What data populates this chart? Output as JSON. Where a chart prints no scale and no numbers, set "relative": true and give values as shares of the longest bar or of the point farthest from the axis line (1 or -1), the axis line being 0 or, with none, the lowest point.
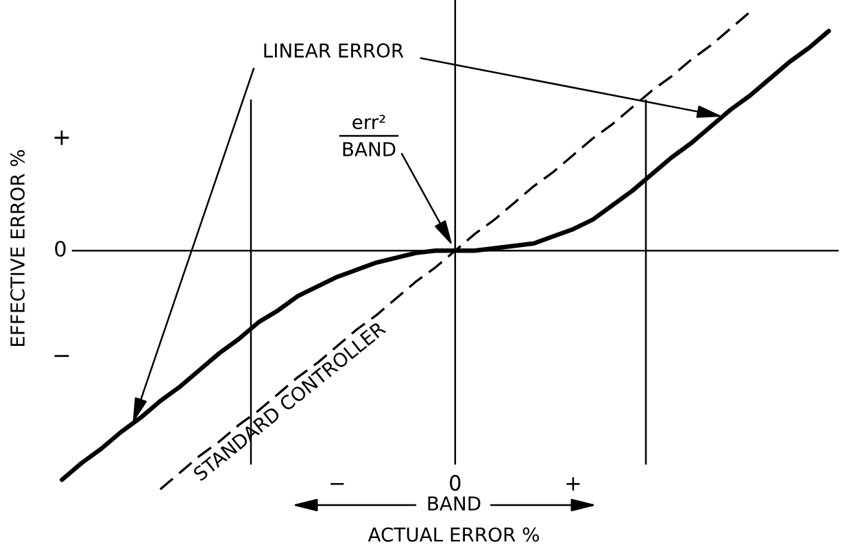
{
  "chart_data": {
    "type": "line",
    "relative": true,
    "xlabel": "ACTUAL ERROR %",
    "ylabel": "EFFECTIVE ERROR %",
    "categories": [
      null,
      null,
      null,
      null,
      null,
      null,
      null,
      null,
      null,
      null,
      null,
      null,
      null,
      null,
      "−",
      null,
      null,
      null,
      null,
      null,
      "0",
      null,
      null,
      null,
      null,
      null,
      "+",
      null,
      null,
      null,
      null,
      null,
      null,
      null,
      null,
      null,
      null,
      null,
      null,
      null
    ],
    "series": [
      {
        "color": "#000000",
        "line_style": "solid",
        "values": [
          -0.96,
          -0.89,
          -0.83,
          -0.76,
          -0.7,
          -0.63,
          -0.57,
          -0.5,
          -0.43,
          -0.37,
          -0.3,
          -0.25,
          -0.19,
          -0.15,
          -0.11,
          -0.08,
          -0.05,
          -0.03,
          -0.01,
          0,
          0,
          0,
          0.01,
          0.02,
          0.03,
          0.06,
          0.09,
          0.13,
          0.19,
          0.25,
          0.32,
          0.39,
          0.45,
          0.52,
          0.59,
          0.65,
          0.72,
          0.79,
          0.85,
          0.92
        ]
      },
      {
        "name": "STANDARD CONTROLLER",
        "color": "#000000",
        "line_style": "dashed",
        "values": [
          null,
          null,
          null,
          null,
          null,
          -1.0,
          -0.93,
          -0.86,
          -0.8,
          -0.73,
          -0.67,
          -0.6,
          -0.53,
          -0.47,
          -0.4,
          -0.33,
          -0.27,
          -0.2,
          -0.13,
          -0.07,
          0,
          0.07,
          0.13,
          0.2,
          0.27,
          0.33,
          0.4,
          0.47,
          0.53,
          0.6,
          0.67,
          0.73,
          0.8,
          0.86,
          0.93,
          1.0,
          null,
          null,
          null,
          null
        ]
      }
    ],
    "ref_lines": [
      {
        "axis": "y",
        "value": 0,
        "label": "0"
      },
      {
        "axis": "x",
        "value": "0"
      }
    ],
    "annotations": [
      "+",
      "−",
      "LINEAR ERROR",
      {
        "text": "err²\nBAND",
        "x": "0",
        "y": 0
      },
      "BAND"
    ]
  }
}
